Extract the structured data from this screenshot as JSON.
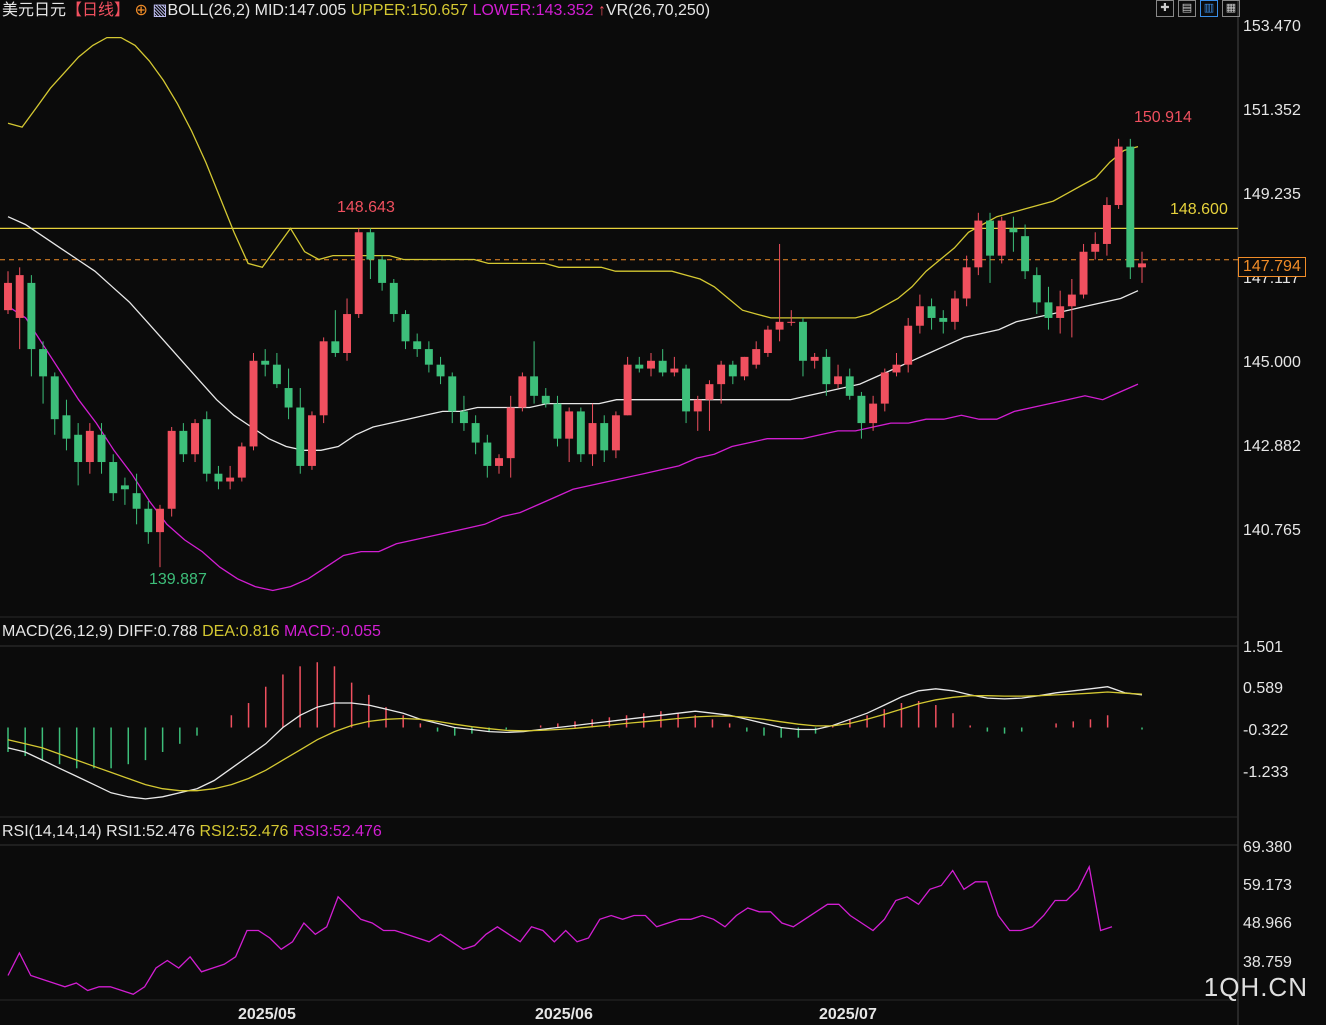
{
  "header": {
    "title": "美元日元",
    "period": "【日线】",
    "boll_name": "BOLL(26,2)",
    "mid": "MID:147.005",
    "upper": "UPPER:150.657",
    "lower": "LOWER:143.352",
    "vr": "VR(26,70,250)"
  },
  "macd_header": {
    "name": "MACD(26,12,9)",
    "diff": "DIFF:0.788",
    "dea": "DEA:0.816",
    "macd": "MACD:-0.055"
  },
  "rsi_header": {
    "name": "RSI(14,14,14)",
    "rsi1": "RSI1:52.476",
    "rsi2": "RSI2:52.476",
    "rsi3": "RSI3:52.476"
  },
  "price_axis": [
    "153.470",
    "151.352",
    "149.235",
    "147.117",
    "145.000",
    "142.882",
    "140.765"
  ],
  "macd_axis": [
    "1.501",
    "0.589",
    "-0.322",
    "-1.233"
  ],
  "rsi_axis": [
    "69.380",
    "59.173",
    "48.966",
    "38.759"
  ],
  "dates": [
    "2025/05",
    "2025/06",
    "2025/07"
  ],
  "annotations": {
    "high": "150.914",
    "mid_high": "148.643",
    "low": "139.887",
    "hline": "148.600",
    "last": "147.794"
  },
  "watermark": "1QH.CN",
  "colors": {
    "up": "#f0505f",
    "down": "#3dbf7a",
    "upper": "#d4c832",
    "mid": "#e8e8e8",
    "lower": "#d21ed2",
    "diff": "#e8e8e8",
    "dea": "#d4c832",
    "rsi": "#d21ed2",
    "hline": "#e6d23c",
    "last": "#f08c28"
  },
  "chart_data": {
    "type": "candlestick",
    "ylim": [
      138.8,
      153.9
    ],
    "candles": [
      [
        146.5,
        147.5,
        146.4,
        147.2
      ],
      [
        146.3,
        147.6,
        145.5,
        147.4
      ],
      [
        147.2,
        147.4,
        144.8,
        145.5
      ],
      [
        145.5,
        145.7,
        144.1,
        144.8
      ],
      [
        144.8,
        144.9,
        143.3,
        143.7
      ],
      [
        143.8,
        144.2,
        142.9,
        143.2
      ],
      [
        143.3,
        143.6,
        142.0,
        142.6
      ],
      [
        142.6,
        143.6,
        142.3,
        143.4
      ],
      [
        143.3,
        143.6,
        142.3,
        142.6
      ],
      [
        142.6,
        142.8,
        141.6,
        141.8
      ],
      [
        142.0,
        142.2,
        141.5,
        141.9
      ],
      [
        141.8,
        142.3,
        141.0,
        141.4
      ],
      [
        141.4,
        141.6,
        140.5,
        140.8
      ],
      [
        140.8,
        141.5,
        139.9,
        141.4
      ],
      [
        141.4,
        143.5,
        141.2,
        143.4
      ],
      [
        143.4,
        143.6,
        142.6,
        142.8
      ],
      [
        142.8,
        143.7,
        142.6,
        143.6
      ],
      [
        143.7,
        143.9,
        142.1,
        142.3
      ],
      [
        142.3,
        142.5,
        141.9,
        142.1
      ],
      [
        142.1,
        142.5,
        141.9,
        142.2
      ],
      [
        142.2,
        143.1,
        142.1,
        143.0
      ],
      [
        143.0,
        145.4,
        142.9,
        145.2
      ],
      [
        145.2,
        145.5,
        144.8,
        145.1
      ],
      [
        145.1,
        145.4,
        144.5,
        144.6
      ],
      [
        144.5,
        145.0,
        143.7,
        144.0
      ],
      [
        144.0,
        144.5,
        142.3,
        142.5
      ],
      [
        142.5,
        143.9,
        142.4,
        143.8
      ],
      [
        143.8,
        145.8,
        143.6,
        145.7
      ],
      [
        145.7,
        146.5,
        145.3,
        145.4
      ],
      [
        145.4,
        146.8,
        145.2,
        146.4
      ],
      [
        146.4,
        148.6,
        146.3,
        148.5
      ],
      [
        148.5,
        148.6,
        147.3,
        147.8
      ],
      [
        147.8,
        147.9,
        147.0,
        147.2
      ],
      [
        147.2,
        147.3,
        146.2,
        146.4
      ],
      [
        146.4,
        146.5,
        145.5,
        145.7
      ],
      [
        145.7,
        145.9,
        145.3,
        145.5
      ],
      [
        145.5,
        145.7,
        144.9,
        145.1
      ],
      [
        145.1,
        145.3,
        144.6,
        144.8
      ],
      [
        144.8,
        144.9,
        143.6,
        143.9
      ],
      [
        143.9,
        144.3,
        143.4,
        143.6
      ],
      [
        143.6,
        143.8,
        142.8,
        143.1
      ],
      [
        143.1,
        143.3,
        142.2,
        142.5
      ],
      [
        142.5,
        142.8,
        142.3,
        142.7
      ],
      [
        142.7,
        144.3,
        142.2,
        144.0
      ],
      [
        144.0,
        144.9,
        143.9,
        144.8
      ],
      [
        144.8,
        145.7,
        144.1,
        144.3
      ],
      [
        144.3,
        144.5,
        144.0,
        144.1
      ],
      [
        144.1,
        144.3,
        143.0,
        143.2
      ],
      [
        143.2,
        144.0,
        142.6,
        143.9
      ],
      [
        143.9,
        144.0,
        142.6,
        142.8
      ],
      [
        142.8,
        144.1,
        142.5,
        143.6
      ],
      [
        143.6,
        143.8,
        142.6,
        142.9
      ],
      [
        142.9,
        143.9,
        142.7,
        143.8
      ],
      [
        143.8,
        145.3,
        143.8,
        145.1
      ],
      [
        145.1,
        145.3,
        144.9,
        145.0
      ],
      [
        145.0,
        145.4,
        144.8,
        145.2
      ],
      [
        145.2,
        145.5,
        144.8,
        144.9
      ],
      [
        144.9,
        145.3,
        144.8,
        145.0
      ],
      [
        145.0,
        145.1,
        143.6,
        143.9
      ],
      [
        143.9,
        144.3,
        143.4,
        144.2
      ],
      [
        144.2,
        144.7,
        143.4,
        144.6
      ],
      [
        144.6,
        145.2,
        144.1,
        145.1
      ],
      [
        145.1,
        145.2,
        144.6,
        144.8
      ],
      [
        144.8,
        145.3,
        144.7,
        145.3
      ],
      [
        145.1,
        145.7,
        145.0,
        145.5
      ],
      [
        145.4,
        146.1,
        145.3,
        146.0
      ],
      [
        146.0,
        148.2,
        145.7,
        146.2
      ],
      [
        146.2,
        146.5,
        146.1,
        146.2
      ],
      [
        146.2,
        146.3,
        144.8,
        145.2
      ],
      [
        145.2,
        145.4,
        145.0,
        145.3
      ],
      [
        145.3,
        145.5,
        144.3,
        144.6
      ],
      [
        144.6,
        145.1,
        144.5,
        144.8
      ],
      [
        144.8,
        145.0,
        144.2,
        144.3
      ],
      [
        144.3,
        144.4,
        143.2,
        143.6
      ],
      [
        143.6,
        144.3,
        143.4,
        144.1
      ],
      [
        144.1,
        145.0,
        143.9,
        144.9
      ],
      [
        144.9,
        145.4,
        144.8,
        145.1
      ],
      [
        145.1,
        146.3,
        144.9,
        146.1
      ],
      [
        146.1,
        146.9,
        145.9,
        146.6
      ],
      [
        146.6,
        146.8,
        146.0,
        146.3
      ],
      [
        146.3,
        146.5,
        145.9,
        146.2
      ],
      [
        146.2,
        147.0,
        146.0,
        146.8
      ],
      [
        146.8,
        147.9,
        146.6,
        147.6
      ],
      [
        147.6,
        149.0,
        147.4,
        148.8
      ],
      [
        148.8,
        149.0,
        147.2,
        147.9
      ],
      [
        147.9,
        148.9,
        147.7,
        148.8
      ],
      [
        148.6,
        148.9,
        148.0,
        148.5
      ],
      [
        148.4,
        148.7,
        147.3,
        147.5
      ],
      [
        147.4,
        147.6,
        146.4,
        146.7
      ],
      [
        146.7,
        147.1,
        146.0,
        146.3
      ],
      [
        146.3,
        147.0,
        145.9,
        146.6
      ],
      [
        146.6,
        147.3,
        145.8,
        146.9
      ],
      [
        146.9,
        148.2,
        146.8,
        148.0
      ],
      [
        148.0,
        148.5,
        147.8,
        148.2
      ],
      [
        148.2,
        149.4,
        147.9,
        149.2
      ],
      [
        149.2,
        150.9,
        149.1,
        150.7
      ],
      [
        150.7,
        150.9,
        147.3,
        147.6
      ],
      [
        147.6,
        148.0,
        147.2,
        147.7
      ]
    ],
    "upper": [
      151.3,
      151.2,
      151.7,
      152.2,
      152.6,
      153.0,
      153.3,
      153.5,
      153.5,
      153.3,
      152.9,
      152.4,
      151.8,
      151.1,
      150.3,
      149.4,
      148.5,
      147.7,
      147.6,
      148.1,
      148.6,
      148.0,
      147.8,
      147.9,
      147.9,
      147.9,
      147.9,
      147.9,
      147.8,
      147.8,
      147.8,
      147.8,
      147.8,
      147.8,
      147.7,
      147.7,
      147.7,
      147.7,
      147.7,
      147.6,
      147.6,
      147.6,
      147.6,
      147.5,
      147.5,
      147.5,
      147.5,
      147.5,
      147.4,
      147.3,
      147.1,
      146.8,
      146.5,
      146.4,
      146.3,
      146.3,
      146.3,
      146.3,
      146.3,
      146.3,
      146.3,
      146.4,
      146.6,
      146.8,
      147.1,
      147.5,
      147.8,
      148.1,
      148.5,
      148.7,
      148.9,
      149.0,
      149.1,
      149.2,
      149.3,
      149.5,
      149.7,
      149.9,
      150.3,
      150.6,
      150.7
    ],
    "mid": [
      148.9,
      148.7,
      148.4,
      148.1,
      147.8,
      147.5,
      147.1,
      146.7,
      146.2,
      145.7,
      145.2,
      144.7,
      144.2,
      143.8,
      143.5,
      143.2,
      143.0,
      142.9,
      142.9,
      143.0,
      143.3,
      143.5,
      143.6,
      143.7,
      143.8,
      143.9,
      143.9,
      144.0,
      144.0,
      144.0,
      144.0,
      144.1,
      144.1,
      144.1,
      144.1,
      144.2,
      144.2,
      144.2,
      144.2,
      144.2,
      144.2,
      144.2,
      144.2,
      144.2,
      144.2,
      144.2,
      144.3,
      144.4,
      144.5,
      144.6,
      144.8,
      145.0,
      145.2,
      145.4,
      145.6,
      145.8,
      145.9,
      146.0,
      146.2,
      146.3,
      146.4,
      146.5,
      146.6,
      146.7,
      146.8,
      147.0
    ],
    "lower": [
      146.6,
      146.3,
      145.6,
      144.9,
      144.2,
      143.6,
      142.9,
      142.3,
      141.6,
      141.0,
      140.6,
      140.3,
      139.9,
      139.6,
      139.4,
      139.3,
      139.4,
      139.6,
      139.9,
      140.2,
      140.3,
      140.3,
      140.5,
      140.6,
      140.7,
      140.8,
      140.9,
      141.0,
      141.2,
      141.3,
      141.5,
      141.7,
      141.9,
      142.0,
      142.1,
      142.2,
      142.3,
      142.4,
      142.5,
      142.7,
      142.8,
      143.0,
      143.1,
      143.2,
      143.2,
      143.2,
      143.3,
      143.4,
      143.4,
      143.5,
      143.6,
      143.6,
      143.7,
      143.7,
      143.8,
      143.7,
      143.7,
      143.9,
      144.0,
      144.1,
      144.2,
      144.3,
      144.2,
      144.4,
      144.6
    ],
    "macd": {
      "ylim": [
        -1.9,
        1.9
      ],
      "diff": [
        -0.5,
        -0.6,
        -0.8,
        -1.0,
        -1.2,
        -1.4,
        -1.6,
        -1.7,
        -1.75,
        -1.7,
        -1.6,
        -1.5,
        -1.3,
        -1.0,
        -0.7,
        -0.4,
        0.0,
        0.3,
        0.5,
        0.6,
        0.6,
        0.55,
        0.45,
        0.35,
        0.2,
        0.1,
        0.0,
        -0.05,
        -0.1,
        -0.12,
        -0.1,
        -0.05,
        0.0,
        0.05,
        0.1,
        0.15,
        0.2,
        0.25,
        0.3,
        0.35,
        0.4,
        0.35,
        0.3,
        0.2,
        0.1,
        0.0,
        -0.05,
        -0.05,
        0.05,
        0.2,
        0.35,
        0.55,
        0.75,
        0.9,
        0.95,
        0.9,
        0.8,
        0.72,
        0.7,
        0.72,
        0.78,
        0.85,
        0.9,
        0.95,
        1.0,
        0.85,
        0.8
      ],
      "dea": [
        -0.3,
        -0.4,
        -0.5,
        -0.65,
        -0.8,
        -0.95,
        -1.1,
        -1.25,
        -1.4,
        -1.5,
        -1.55,
        -1.55,
        -1.5,
        -1.4,
        -1.25,
        -1.05,
        -0.8,
        -0.55,
        -0.3,
        -0.1,
        0.05,
        0.15,
        0.2,
        0.22,
        0.2,
        0.15,
        0.08,
        0.02,
        -0.03,
        -0.07,
        -0.08,
        -0.07,
        -0.05,
        -0.02,
        0.02,
        0.06,
        0.1,
        0.14,
        0.18,
        0.22,
        0.26,
        0.28,
        0.28,
        0.25,
        0.2,
        0.14,
        0.08,
        0.04,
        0.04,
        0.1,
        0.2,
        0.32,
        0.45,
        0.58,
        0.68,
        0.74,
        0.78,
        0.78,
        0.77,
        0.77,
        0.78,
        0.8,
        0.82,
        0.84,
        0.87,
        0.84,
        0.82
      ],
      "hist": [
        -0.6,
        -0.7,
        -0.8,
        -0.9,
        -1.0,
        -1.0,
        -1.0,
        -0.9,
        -0.8,
        -0.6,
        -0.4,
        -0.2,
        0.0,
        0.3,
        0.6,
        1.0,
        1.3,
        1.5,
        1.6,
        1.5,
        1.1,
        0.8,
        0.5,
        0.3,
        0.1,
        -0.1,
        -0.2,
        -0.15,
        -0.1,
        -0.05,
        0.0,
        0.05,
        0.1,
        0.15,
        0.2,
        0.25,
        0.3,
        0.35,
        0.4,
        0.35,
        0.3,
        0.2,
        0.1,
        -0.1,
        -0.2,
        -0.25,
        -0.25,
        -0.15,
        0.05,
        0.2,
        0.3,
        0.45,
        0.6,
        0.65,
        0.55,
        0.35,
        0.05,
        -0.1,
        -0.15,
        -0.1,
        0.0,
        0.1,
        0.15,
        0.2,
        0.3,
        0.0,
        -0.05
      ]
    },
    "rsi": {
      "ylim": [
        34,
        74
      ],
      "values": [
        40,
        46,
        40,
        39,
        38,
        37,
        38,
        36,
        37,
        37,
        36,
        35,
        37,
        42,
        44,
        42,
        45,
        41,
        42,
        43,
        45,
        52,
        52,
        50,
        47,
        49,
        54,
        51,
        53,
        61,
        58,
        55,
        54,
        52,
        52,
        51,
        50,
        49,
        51,
        49,
        47,
        48,
        51,
        53,
        51,
        49,
        53,
        52,
        49,
        52,
        49,
        50,
        55,
        56,
        55,
        56,
        56,
        53,
        54,
        55,
        55,
        56,
        55,
        53,
        56,
        58,
        57,
        57,
        54,
        53,
        55,
        57,
        59,
        59,
        56,
        54,
        52,
        55,
        60,
        61,
        59,
        63,
        64,
        68,
        63,
        65,
        65,
        56,
        52,
        52,
        53,
        56,
        60,
        60,
        63,
        69,
        52,
        53
      ]
    }
  }
}
